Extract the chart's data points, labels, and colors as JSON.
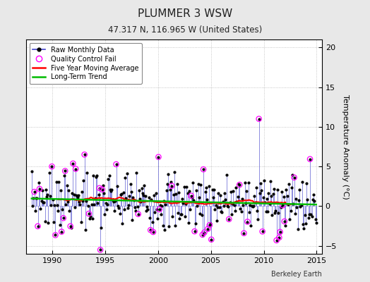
{
  "title": "PLUMMER 3 WSW",
  "subtitle": "47.317 N, 116.965 W (United States)",
  "ylabel": "Temperature Anomaly (°C)",
  "xlabel_credit": "Berkeley Earth",
  "xlim": [
    1987.5,
    2015.5
  ],
  "ylim": [
    -6,
    21
  ],
  "yticks": [
    -5,
    0,
    5,
    10,
    15,
    20
  ],
  "xticks": [
    1990,
    1995,
    2000,
    2005,
    2010,
    2015
  ],
  "line_color": "#4444cc",
  "marker_color": "#000000",
  "qc_color": "#ff00ff",
  "moving_avg_color": "#ff0000",
  "trend_color": "#00bb00",
  "background_color": "#e8e8e8",
  "plot_bg_color": "#ffffff",
  "title_fontsize": 11,
  "subtitle_fontsize": 8.5,
  "seed": 7
}
